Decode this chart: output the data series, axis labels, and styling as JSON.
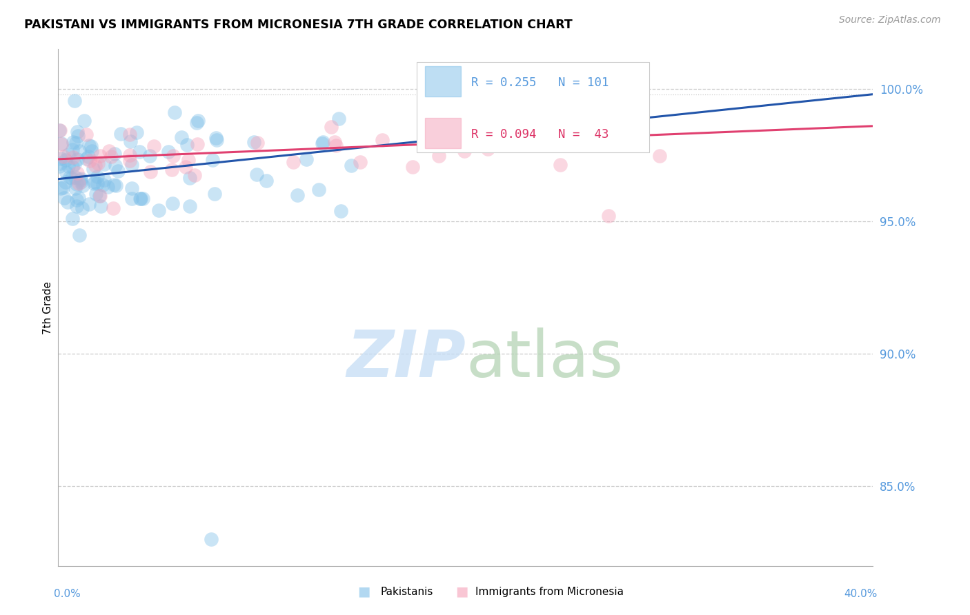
{
  "title": "PAKISTANI VS IMMIGRANTS FROM MICRONESIA 7TH GRADE CORRELATION CHART",
  "source": "Source: ZipAtlas.com",
  "ylabel": "7th Grade",
  "xmin": 0.0,
  "xmax": 40.0,
  "ymin": 82.0,
  "ymax": 101.5,
  "yticks": [
    85.0,
    90.0,
    95.0,
    100.0
  ],
  "blue_color": "#7fbfe8",
  "pink_color": "#f5a0b8",
  "trend_blue": "#2255aa",
  "trend_pink": "#e04070",
  "tick_color": "#5599dd",
  "legend_r_color": "#5599dd",
  "legend_n_color": "#ee3333",
  "legend_pink_r_color": "#dd3366",
  "watermark_zip_color": "#c5ddf5",
  "watermark_atlas_color": "#b5d4b5"
}
